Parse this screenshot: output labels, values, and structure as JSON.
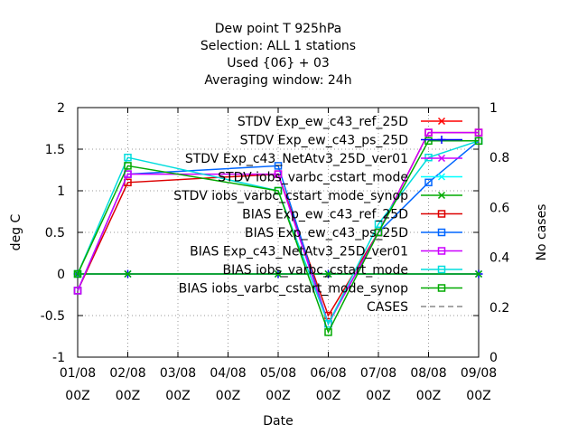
{
  "chart_data": {
    "type": "line",
    "title_lines": [
      "Dew point T 925hPa",
      "Selection: ALL      1 stations",
      "Used {06} + 03",
      "Averaging window: 24h"
    ],
    "xlabel": "Date",
    "ylabel": "deg C",
    "y2label": "No cases",
    "categories": [
      [
        "01/08",
        "00Z"
      ],
      [
        "02/08",
        "00Z"
      ],
      [
        "03/08",
        "00Z"
      ],
      [
        "04/08",
        "00Z"
      ],
      [
        "05/08",
        "00Z"
      ],
      [
        "06/08",
        "00Z"
      ],
      [
        "07/08",
        "00Z"
      ],
      [
        "08/08",
        "00Z"
      ],
      [
        "09/08",
        "00Z"
      ]
    ],
    "ylim": [
      -1,
      2
    ],
    "yticks": [
      "-1",
      "-0.5",
      "0",
      "0.5",
      "1",
      "1.5",
      "2"
    ],
    "ytick_values": [
      -1,
      -0.5,
      0,
      0.5,
      1,
      1.5,
      2
    ],
    "y2lim": [
      0,
      1
    ],
    "y2ticks": [
      "0",
      "0.2",
      "0.4",
      "0.6",
      "0.8",
      "1"
    ],
    "y2tick_values": [
      0,
      0.2,
      0.4,
      0.6,
      0.8,
      1
    ],
    "grid": true,
    "legend_position": "top-right",
    "series": [
      {
        "name": "STDV Exp_ew_c43_ref_25D",
        "color": "#ff0000",
        "marker": "x",
        "x": [
          0,
          1,
          4,
          5,
          8
        ],
        "values": [
          0,
          0,
          0,
          0,
          0
        ]
      },
      {
        "name": "STDV Exp_ew_c43_ps_25D",
        "color": "#0000ff",
        "marker": "plus",
        "x": [
          0,
          1,
          4,
          5,
          8
        ],
        "values": [
          0,
          0,
          0,
          0,
          0
        ]
      },
      {
        "name": "STDV Exp_c43_NetAtv3_25D_ver01",
        "color": "#cc00ff",
        "marker": "x",
        "x": [
          0,
          1,
          4,
          5,
          8
        ],
        "values": [
          0,
          0,
          0,
          0,
          0
        ]
      },
      {
        "name": "STDV iobs_varbc_cstart_mode",
        "color": "#00ffff",
        "marker": "x",
        "x": [
          0,
          1,
          4,
          5,
          8
        ],
        "values": [
          0,
          0,
          0,
          0,
          0
        ]
      },
      {
        "name": "STDV iobs_varbc_cstart_mode_synop",
        "color": "#00aa00",
        "marker": "x",
        "x": [
          0,
          1,
          4,
          5,
          8
        ],
        "values": [
          0,
          0,
          0,
          0,
          0
        ]
      },
      {
        "name": "BIAS Exp_ew_c43_ref_25D",
        "color": "#dd0000",
        "marker": "square",
        "x": [
          0,
          1,
          4,
          5,
          6,
          7,
          8
        ],
        "values": [
          -0.2,
          1.1,
          1.2,
          -0.5,
          0.5,
          1.7,
          1.7
        ]
      },
      {
        "name": "BIAS Exp_ew_c43_ps_25D",
        "color": "#0066ff",
        "marker": "square",
        "x": [
          0,
          1,
          4,
          5,
          6,
          7,
          8
        ],
        "values": [
          -0.2,
          1.2,
          1.3,
          -0.6,
          0.5,
          1.1,
          1.6
        ]
      },
      {
        "name": "BIAS Exp_c43_NetAtv3_25D_ver01",
        "color": "#cc00ff",
        "marker": "square",
        "x": [
          0,
          1,
          4,
          5,
          6,
          7,
          8
        ],
        "values": [
          -0.2,
          1.2,
          1.2,
          -0.6,
          0.5,
          1.7,
          1.7
        ]
      },
      {
        "name": "BIAS iobs_varbc_cstart_mode",
        "color": "#00dddd",
        "marker": "square",
        "x": [
          0,
          1,
          4,
          5,
          6,
          7,
          8
        ],
        "values": [
          0,
          1.4,
          1.0,
          -0.6,
          0.6,
          1.4,
          1.6
        ]
      },
      {
        "name": "BIAS iobs_varbc_cstart_mode_synop",
        "color": "#00aa00",
        "marker": "square",
        "x": [
          0,
          1,
          4,
          5,
          6,
          7,
          8
        ],
        "values": [
          0,
          1.3,
          1.0,
          -0.7,
          0.5,
          1.6,
          1.6
        ]
      }
    ],
    "cases_series": {
      "name": "CASES",
      "color": "#888888",
      "dash": "6,4"
    }
  }
}
